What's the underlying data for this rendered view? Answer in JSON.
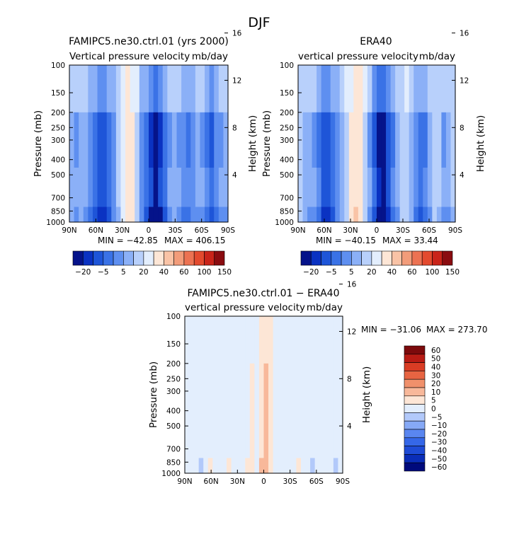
{
  "figure_title": "DJF",
  "colors": {
    "model_scale": [
      "#05138a",
      "#0a32c2",
      "#1e55d8",
      "#3a72e6",
      "#5e8ff0",
      "#8bb0f7",
      "#b8d0fb",
      "#e3eefd",
      "#fde6d6",
      "#f9c3a6",
      "#f29c7a",
      "#ec7252",
      "#e34a2e",
      "#c9241a",
      "#8a0c10"
    ],
    "diff_scale": [
      "#000a7c",
      "#0a2db8",
      "#1e4bd6",
      "#3567e8",
      "#5a86f0",
      "#86a9f6",
      "#b2c9fa",
      "#e3eefd",
      "#fde6d6",
      "#f8b89a",
      "#f0906b",
      "#e76442",
      "#d93c24",
      "#b81b14",
      "#7c0a0c"
    ]
  },
  "chart_data": [
    {
      "type": "heatmap",
      "title": "FAMIPC5.ne30.ctrl.01 (yrs 2000)",
      "subtitle_left": "Vertical pressure velocity",
      "subtitle_right": "mb/day",
      "ylabel": "Pressure (mb)",
      "ylabel_right": "Height (km)",
      "x_ticks": [
        "90N",
        "60N",
        "30N",
        "0",
        "30S",
        "60S",
        "90S"
      ],
      "y_ticks": [
        "100",
        "150",
        "200",
        "250",
        "300",
        "400",
        "500",
        "700",
        "850",
        "1000"
      ],
      "y2_ticks": [
        "16",
        "12",
        "8",
        "4"
      ],
      "ylim": [
        100,
        1000
      ],
      "y_scale": "log",
      "min_label": "MIN = −42.85",
      "max_label": "MAX = 406.15",
      "colorbar_labels": [
        "−20",
        "−5",
        "5",
        "20",
        "40",
        "60",
        "100",
        "150"
      ],
      "colorbar_orientation": "horizontal",
      "columns": [
        -10,
        -14,
        -10,
        -12,
        -18,
        -24,
        -30,
        -28,
        -22,
        -16,
        -8,
        2,
        6,
        4,
        -4,
        -16,
        -24,
        -32,
        -40,
        -32,
        -22,
        -14,
        -10,
        -14,
        -18,
        -20,
        -16,
        -12,
        -14,
        -20,
        -26,
        -18,
        -14,
        -12
      ]
    },
    {
      "type": "heatmap",
      "title": "ERA40",
      "subtitle_left": "vertical pressure velocity",
      "subtitle_right": "mb/day",
      "ylabel": "Pressure (mb)",
      "ylabel_right": "Height (km)",
      "x_ticks": [
        "90N",
        "60N",
        "30N",
        "0",
        "30S",
        "60S",
        "90S"
      ],
      "y_ticks": [
        "100",
        "150",
        "200",
        "250",
        "300",
        "400",
        "500",
        "700",
        "850",
        "1000"
      ],
      "y2_ticks": [
        "16",
        "12",
        "8",
        "4"
      ],
      "ylim": [
        100,
        1000
      ],
      "y_scale": "log",
      "min_label": "MIN = −40.15",
      "max_label": "MAX = 33.44",
      "colorbar_labels": [
        "−20",
        "−5",
        "5",
        "20",
        "40",
        "60",
        "100",
        "150"
      ],
      "colorbar_orientation": "horizontal",
      "columns": [
        -6,
        -10,
        -12,
        -14,
        -20,
        -28,
        -30,
        -24,
        -16,
        -10,
        -4,
        4,
        8,
        6,
        -4,
        -14,
        -26,
        -36,
        -40,
        -30,
        -20,
        -12,
        -6,
        -4,
        -10,
        -18,
        -24,
        -20,
        -12,
        -6,
        -8,
        -14,
        -12,
        -8
      ]
    },
    {
      "type": "heatmap",
      "title": "FAMIPC5.ne30.ctrl.01 − ERA40",
      "subtitle_left": "vertical pressure velocity",
      "subtitle_right": "mb/day",
      "ylabel": "Pressure (mb)",
      "ylabel_right": "Height (km)",
      "x_ticks": [
        "90N",
        "60N",
        "30N",
        "0",
        "30S",
        "60S",
        "90S"
      ],
      "y_ticks": [
        "100",
        "150",
        "200",
        "250",
        "300",
        "400",
        "500",
        "700",
        "850",
        "1000"
      ],
      "y2_ticks": [
        "16",
        "12",
        "8",
        "4"
      ],
      "ylim": [
        100,
        1000
      ],
      "y_scale": "log",
      "min_label": "MIN = −31.06",
      "max_label": "MAX = 273.70",
      "colorbar_labels": [
        "60",
        "50",
        "40",
        "30",
        "20",
        "10",
        "5",
        "0",
        "−5",
        "−10",
        "−20",
        "−30",
        "−40",
        "−50",
        "−60"
      ],
      "colorbar_orientation": "vertical",
      "columns": [
        -2,
        2,
        -2,
        -4,
        2,
        4,
        0,
        -3,
        3,
        4,
        -2,
        1,
        -3,
        4,
        6,
        2,
        12,
        16,
        10,
        2,
        -2,
        -3,
        -2,
        2,
        4,
        3,
        -2,
        -4,
        -2,
        -3,
        3,
        -2,
        -4,
        2
      ]
    }
  ]
}
